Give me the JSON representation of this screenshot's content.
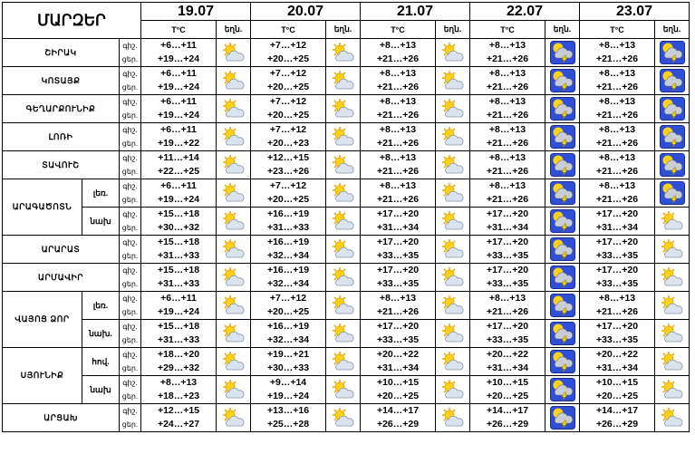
{
  "header": {
    "title": "ՄԱՐԶԵՐ",
    "temp_unit": "T°C",
    "weather_label": "եղն.",
    "dates": [
      "19.07",
      "20.07",
      "21.07",
      "22.07",
      "23.07"
    ]
  },
  "row_labels": {
    "night": "գիշ.",
    "day": "ցեր."
  },
  "rows": [
    {
      "region": "ՇԻՐԱԿ",
      "sub": "",
      "temps": [
        [
          "+6…+11",
          "+19…+24"
        ],
        [
          "+7…+12",
          "+20…+25"
        ],
        [
          "+8…+13",
          "+21…+26"
        ],
        [
          "+8…+13",
          "+21…+26"
        ],
        [
          "+8…+13",
          "+21…+26"
        ]
      ],
      "icons": [
        "sun-cloud-icon",
        "sun-cloud-icon",
        "sun-cloud-icon",
        "thunderstorm-icon",
        "thunderstorm-icon"
      ]
    },
    {
      "region": "ԿՈՏԱՅՔ",
      "sub": "",
      "temps": [
        [
          "+6…+11",
          "+19…+24"
        ],
        [
          "+7…+12",
          "+20…+25"
        ],
        [
          "+8…+13",
          "+21…+26"
        ],
        [
          "+8…+13",
          "+21…+26"
        ],
        [
          "+8…+13",
          "+21…+26"
        ]
      ],
      "icons": [
        "sun-cloud-icon",
        "sun-cloud-icon",
        "sun-cloud-icon",
        "thunderstorm-icon",
        "thunderstorm-icon"
      ]
    },
    {
      "region": "ԳԵՂԱՐՔՈՒՆԻՔ",
      "sub": "",
      "temps": [
        [
          "+6…+11",
          "+19…+24"
        ],
        [
          "+7…+12",
          "+20…+25"
        ],
        [
          "+8…+13",
          "+21…+26"
        ],
        [
          "+8…+13",
          "+21…+26"
        ],
        [
          "+8…+13",
          "+21…+26"
        ]
      ],
      "icons": [
        "sun-cloud-icon",
        "sun-cloud-icon",
        "sun-cloud-icon",
        "thunderstorm-icon",
        "thunderstorm-icon"
      ]
    },
    {
      "region": "ԼՈՌԻ",
      "sub": "",
      "temps": [
        [
          "+6…+11",
          "+19…+22"
        ],
        [
          "+7…+12",
          "+20…+23"
        ],
        [
          "+8…+13",
          "+21…+26"
        ],
        [
          "+8…+13",
          "+21…+26"
        ],
        [
          "+8…+13",
          "+21…+26"
        ]
      ],
      "icons": [
        "sun-cloud-icon",
        "sun-cloud-icon",
        "sun-cloud-icon",
        "thunderstorm-icon",
        "thunderstorm-icon"
      ]
    },
    {
      "region": "ՏԱՎՈՒՇ",
      "sub": "",
      "temps": [
        [
          "+11…+14",
          "+22…+25"
        ],
        [
          "+12…+15",
          "+23…+26"
        ],
        [
          "+8…+13",
          "+21…+26"
        ],
        [
          "+8…+13",
          "+21…+26"
        ],
        [
          "+8…+13",
          "+21…+26"
        ]
      ],
      "icons": [
        "sun-cloud-icon",
        "sun-cloud-icon",
        "sun-cloud-icon",
        "thunderstorm-icon",
        "thunderstorm-icon"
      ]
    },
    {
      "region": "ԱՐԱԳԱԾՈՏՆ",
      "sub": "լեռ.",
      "temps": [
        [
          "+6…+11",
          "+19…+24"
        ],
        [
          "+7…+12",
          "+20…+25"
        ],
        [
          "+8…+13",
          "+21…+26"
        ],
        [
          "+8…+13",
          "+21…+26"
        ],
        [
          "+8…+13",
          "+21…+26"
        ]
      ],
      "icons": [
        "sun-cloud-icon",
        "sun-cloud-icon",
        "sun-cloud-icon",
        "thunderstorm-icon",
        "thunderstorm-icon"
      ]
    },
    {
      "region": "",
      "sub": "նախ",
      "temps": [
        [
          "+15…+18",
          "+30…+32"
        ],
        [
          "+16…+19",
          "+31…+33"
        ],
        [
          "+17…+20",
          "+31…+34"
        ],
        [
          "+17…+20",
          "+31…+34"
        ],
        [
          "+17…+20",
          "+31…+34"
        ]
      ],
      "icons": [
        "sun-cloud-icon",
        "sun-cloud-icon",
        "sun-cloud-icon",
        "thunderstorm-icon",
        "sun-cloud-icon"
      ]
    },
    {
      "region": "ԱՐԱՐԱՏ",
      "sub": "",
      "temps": [
        [
          "+15…+18",
          "+31…+33"
        ],
        [
          "+16…+19",
          "+32…+34"
        ],
        [
          "+17…+20",
          "+33…+35"
        ],
        [
          "+17…+20",
          "+33…+35"
        ],
        [
          "+17…+20",
          "+33…+35"
        ]
      ],
      "icons": [
        "sun-cloud-icon",
        "sun-cloud-icon",
        "sun-cloud-icon",
        "thunderstorm-icon",
        "sun-cloud-icon"
      ]
    },
    {
      "region": "ԱՐՄԱՎԻՐ",
      "sub": "",
      "temps": [
        [
          "+15…+18",
          "+31…+33"
        ],
        [
          "+16…+19",
          "+32…+34"
        ],
        [
          "+17…+20",
          "+33…+35"
        ],
        [
          "+17…+20",
          "+33…+35"
        ],
        [
          "+17…+20",
          "+33…+35"
        ]
      ],
      "icons": [
        "sun-cloud-icon",
        "sun-cloud-icon",
        "sun-cloud-icon",
        "thunderstorm-icon",
        "sun-cloud-icon"
      ]
    },
    {
      "region": "ՎԱՅՈՑ ՁՈՐ",
      "sub": "լեռ.",
      "temps": [
        [
          "+6…+11",
          "+19…+24"
        ],
        [
          "+7…+12",
          "+20…+25"
        ],
        [
          "+8…+13",
          "+21…+26"
        ],
        [
          "+8…+13",
          "+21…+26"
        ],
        [
          "+8…+13",
          "+21…+26"
        ]
      ],
      "icons": [
        "sun-cloud-icon",
        "sun-cloud-icon",
        "sun-cloud-icon",
        "thunderstorm-icon",
        "sun-cloud-icon"
      ]
    },
    {
      "region": "",
      "sub": "նախ.",
      "temps": [
        [
          "+15…+18",
          "+31…+33"
        ],
        [
          "+16…+19",
          "+32…+34"
        ],
        [
          "+17…+20",
          "+33…+35"
        ],
        [
          "+17…+20",
          "+33…+35"
        ],
        [
          "+17…+20",
          "+33…+35"
        ]
      ],
      "icons": [
        "sun-cloud-icon",
        "sun-cloud-icon",
        "sun-cloud-icon",
        "thunderstorm-icon",
        "sun-cloud-icon"
      ]
    },
    {
      "region": "ՍՅՈՒՆԻՔ",
      "sub": "հով.",
      "temps": [
        [
          "+18…+20",
          "+29…+32"
        ],
        [
          "+19…+21",
          "+30…+33"
        ],
        [
          "+20…+22",
          "+31…+34"
        ],
        [
          "+20…+22",
          "+31…+34"
        ],
        [
          "+20…+22",
          "+31…+34"
        ]
      ],
      "icons": [
        "sun-cloud-icon",
        "sun-cloud-icon",
        "sun-cloud-icon",
        "thunderstorm-icon",
        "sun-cloud-icon"
      ]
    },
    {
      "region": "",
      "sub": "նախ",
      "temps": [
        [
          "+8…+13",
          "+18…+23"
        ],
        [
          "+9…+14",
          "+19…+24"
        ],
        [
          "+10…+15",
          "+20…+25"
        ],
        [
          "+10…+15",
          "+20…+25"
        ],
        [
          "+10…+15",
          "+20…+25"
        ]
      ],
      "icons": [
        "sun-cloud-icon",
        "sun-cloud-icon",
        "sun-cloud-icon",
        "thunderstorm-icon",
        "sun-cloud-icon"
      ]
    },
    {
      "region": "ԱՐՑԱԽ",
      "sub": "",
      "temps": [
        [
          "+12…+15",
          "+24…+27"
        ],
        [
          "+13…+16",
          "+25…+28"
        ],
        [
          "+14…+17",
          "+26…+29"
        ],
        [
          "+14…+17",
          "+26…+29"
        ],
        [
          "+14…+17",
          "+26…+29"
        ]
      ],
      "icons": [
        "sun-cloud-icon",
        "sun-cloud-icon",
        "sun-cloud-icon",
        "thunderstorm-icon",
        "sun-cloud-icon"
      ]
    }
  ]
}
